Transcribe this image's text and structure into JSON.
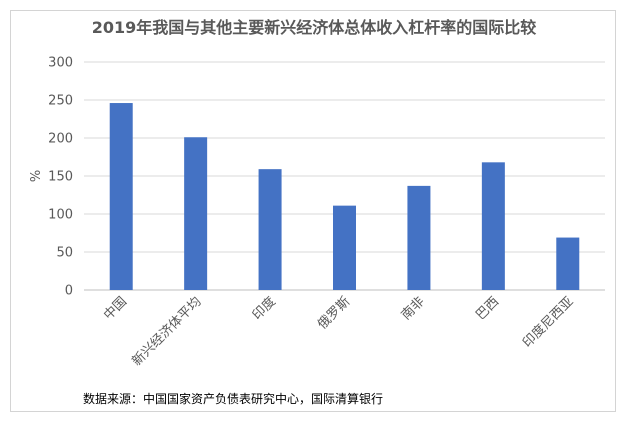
{
  "chart_data": {
    "type": "bar",
    "title": "2019年我国与其他主要新兴经济体总体收入杠杆率的国际比较",
    "ylabel": "%",
    "xlabel": "",
    "ylim": [
      0,
      300
    ],
    "yticks": [
      0,
      50,
      100,
      150,
      200,
      250,
      300
    ],
    "grid": true,
    "bar_color": "#4472C4",
    "categories": [
      "中国",
      "新兴经济体平均",
      "印度",
      "俄罗斯",
      "南非",
      "巴西",
      "印度尼西亚"
    ],
    "values": [
      246,
      201,
      159,
      111,
      137,
      168,
      69
    ],
    "source": "数据来源：中国国家资产负债表研究中心，国际清算银行"
  }
}
